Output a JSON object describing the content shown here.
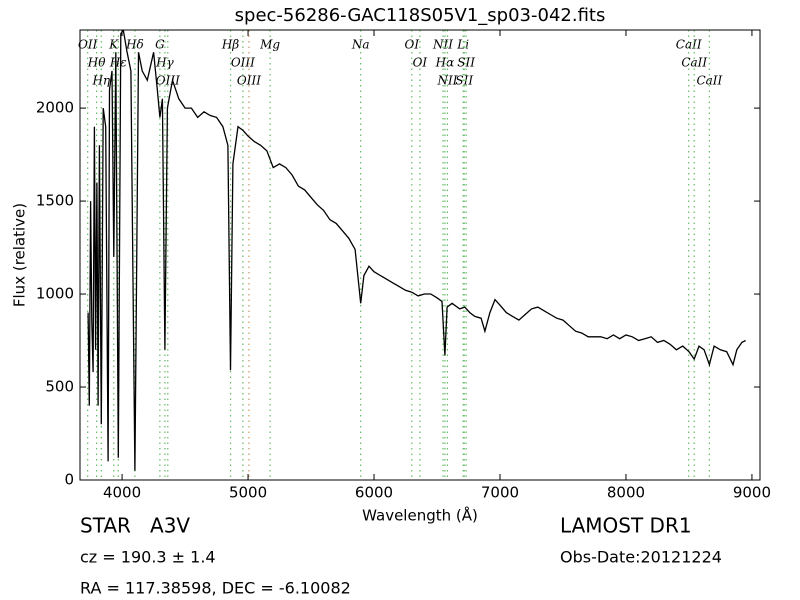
{
  "chart_data": {
    "type": "line",
    "title": "spec-56286-GAC118S05V1_sp03-042.fits",
    "x_label": "Wavelength (Å)",
    "y_label": "Flux (relative)",
    "xlim": [
      3666,
      9064
    ],
    "ylim": [
      0,
      2420
    ],
    "xticks": [
      4000,
      5000,
      6000,
      7000,
      8000,
      9000
    ],
    "yticks": [
      0,
      500,
      1000,
      1500,
      2000
    ],
    "series": [
      {
        "color": "#000000",
        "x": [
          3730,
          3740,
          3750,
          3760,
          3770,
          3780,
          3790,
          3800,
          3810,
          3820,
          3835,
          3850,
          3870,
          3889,
          3900,
          3920,
          3934,
          3950,
          3970,
          3990,
          4010,
          4040,
          4070,
          4102,
          4130,
          4160,
          4200,
          4250,
          4280,
          4300,
          4320,
          4340,
          4360,
          4400,
          4450,
          4500,
          4550,
          4600,
          4650,
          4700,
          4750,
          4800,
          4840,
          4861,
          4880,
          4920,
          4960,
          5000,
          5050,
          5100,
          5150,
          5200,
          5250,
          5300,
          5350,
          5400,
          5450,
          5500,
          5550,
          5600,
          5650,
          5700,
          5750,
          5800,
          5850,
          5894,
          5920,
          5960,
          6000,
          6050,
          6100,
          6150,
          6200,
          6250,
          6300,
          6350,
          6400,
          6450,
          6500,
          6540,
          6563,
          6580,
          6620,
          6680,
          6720,
          6760,
          6800,
          6850,
          6880,
          6920,
          6960,
          7000,
          7050,
          7100,
          7150,
          7200,
          7250,
          7300,
          7350,
          7400,
          7450,
          7500,
          7550,
          7600,
          7650,
          7700,
          7750,
          7800,
          7850,
          7900,
          7950,
          8000,
          8050,
          8100,
          8150,
          8200,
          8250,
          8300,
          8350,
          8400,
          8450,
          8500,
          8542,
          8580,
          8620,
          8662,
          8700,
          8750,
          8800,
          8850,
          8880,
          8920,
          8950
        ],
        "values": [
          900,
          400,
          1500,
          850,
          580,
          1900,
          700,
          1600,
          400,
          1800,
          300,
          2000,
          1900,
          100,
          2100,
          2200,
          1200,
          2300,
          120,
          2400,
          2420,
          2300,
          2200,
          50,
          2300,
          2200,
          2150,
          2300,
          2100,
          1950,
          2050,
          700,
          2000,
          2150,
          2050,
          2000,
          2000,
          1950,
          1980,
          1960,
          1950,
          1900,
          1800,
          590,
          1700,
          1900,
          1880,
          1850,
          1820,
          1800,
          1770,
          1680,
          1700,
          1680,
          1640,
          1580,
          1560,
          1520,
          1480,
          1450,
          1400,
          1380,
          1340,
          1300,
          1240,
          950,
          1100,
          1150,
          1120,
          1100,
          1080,
          1060,
          1040,
          1020,
          1010,
          990,
          1000,
          1000,
          980,
          960,
          670,
          930,
          950,
          920,
          930,
          900,
          880,
          870,
          800,
          900,
          970,
          940,
          900,
          880,
          860,
          890,
          920,
          930,
          910,
          890,
          870,
          860,
          830,
          800,
          790,
          770,
          770,
          770,
          760,
          780,
          760,
          780,
          770,
          750,
          760,
          770,
          740,
          750,
          730,
          700,
          720,
          690,
          650,
          720,
          700,
          620,
          720,
          700,
          690,
          620,
          700,
          740,
          750
        ]
      }
    ],
    "lines": [
      {
        "label": "OII",
        "wavelength": 3727,
        "color": "#66bb66"
      },
      {
        "label": "Hθ",
        "wavelength": 3798,
        "color": "#66bb66"
      },
      {
        "label": "Hη",
        "wavelength": 3835,
        "color": "#66bb66"
      },
      {
        "label": "K",
        "wavelength": 3934,
        "color": "#66bb66"
      },
      {
        "label": "Hε",
        "wavelength": 3970,
        "color": "#66bb66"
      },
      {
        "label": "Hδ",
        "wavelength": 4102,
        "color": "#66bb66"
      },
      {
        "label": "G",
        "wavelength": 4300,
        "color": "#66bb66"
      },
      {
        "label": "Hγ",
        "wavelength": 4340,
        "color": "#66bb66"
      },
      {
        "label": "OIII",
        "wavelength": 4363,
        "color": "#66bb66"
      },
      {
        "label": "Hβ",
        "wavelength": 4861,
        "color": "#66bb66"
      },
      {
        "label": "OIII",
        "wavelength": 4959,
        "color": "#66bb66"
      },
      {
        "label": "OIII",
        "wavelength": 5007,
        "color": "#cc9966"
      },
      {
        "label": "Mg",
        "wavelength": 5175,
        "color": "#66bb66"
      },
      {
        "label": "Na",
        "wavelength": 5894,
        "color": "#66bb66"
      },
      {
        "label": "OI",
        "wavelength": 6300,
        "color": "#66bb66"
      },
      {
        "label": "OI",
        "wavelength": 6364,
        "color": "#66bb66"
      },
      {
        "label": "NII",
        "wavelength": 6548,
        "color": "#66bb66"
      },
      {
        "label": "Hα",
        "wavelength": 6563,
        "color": "#66bb66"
      },
      {
        "label": "NII",
        "wavelength": 6583,
        "color": "#66bb66"
      },
      {
        "label": "Li",
        "wavelength": 6708,
        "color": "#66bb66"
      },
      {
        "label": "SII",
        "wavelength": 6716,
        "color": "#66bb66"
      },
      {
        "label": "SII",
        "wavelength": 6731,
        "color": "#66bb66"
      },
      {
        "label": "CaII",
        "wavelength": 8498,
        "color": "#66bb66"
      },
      {
        "label": "CaII",
        "wavelength": 8542,
        "color": "#66bb66"
      },
      {
        "label": "CaII",
        "wavelength": 8662,
        "color": "#66bb66"
      }
    ],
    "annotations": {
      "class": "STAR   A3V",
      "redshift": "cz = 190.3 ± 1.4",
      "coords": "RA = 117.38598, DEC = -6.10082",
      "survey": "LAMOST DR1",
      "obs_date": "Obs-Date:20121224"
    }
  }
}
